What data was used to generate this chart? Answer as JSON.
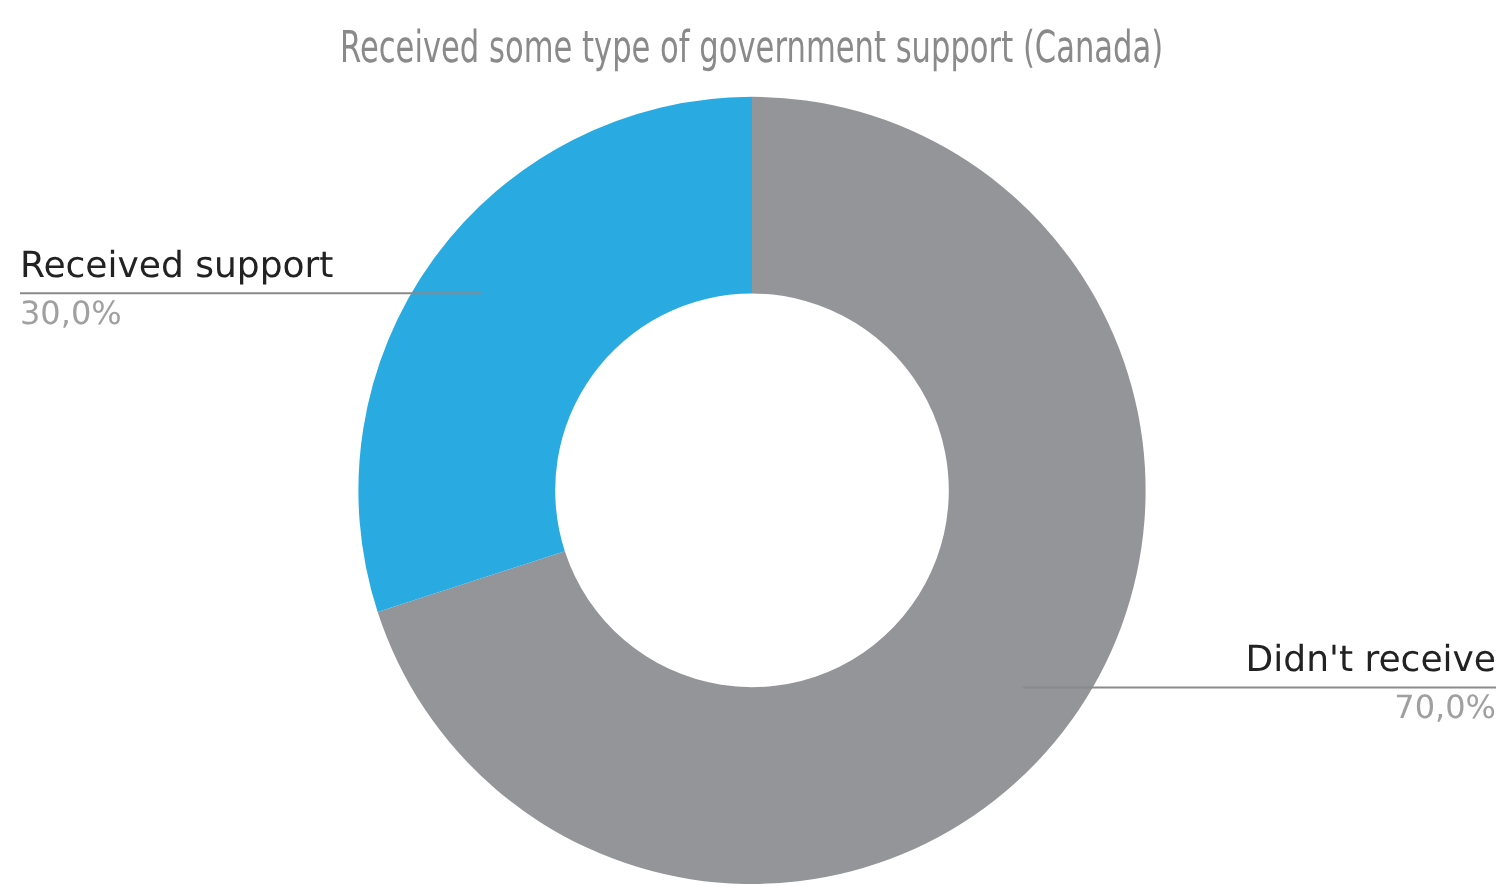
{
  "chart_data": {
    "type": "donut",
    "title": "Received some type of government support (Canada)",
    "categories": [
      "Didn't receive",
      "Received support"
    ],
    "values": [
      70,
      30
    ],
    "colors": [
      "#939598",
      "#29abe2"
    ],
    "value_labels": [
      "70,0%",
      "30,0%"
    ],
    "legend": false
  }
}
